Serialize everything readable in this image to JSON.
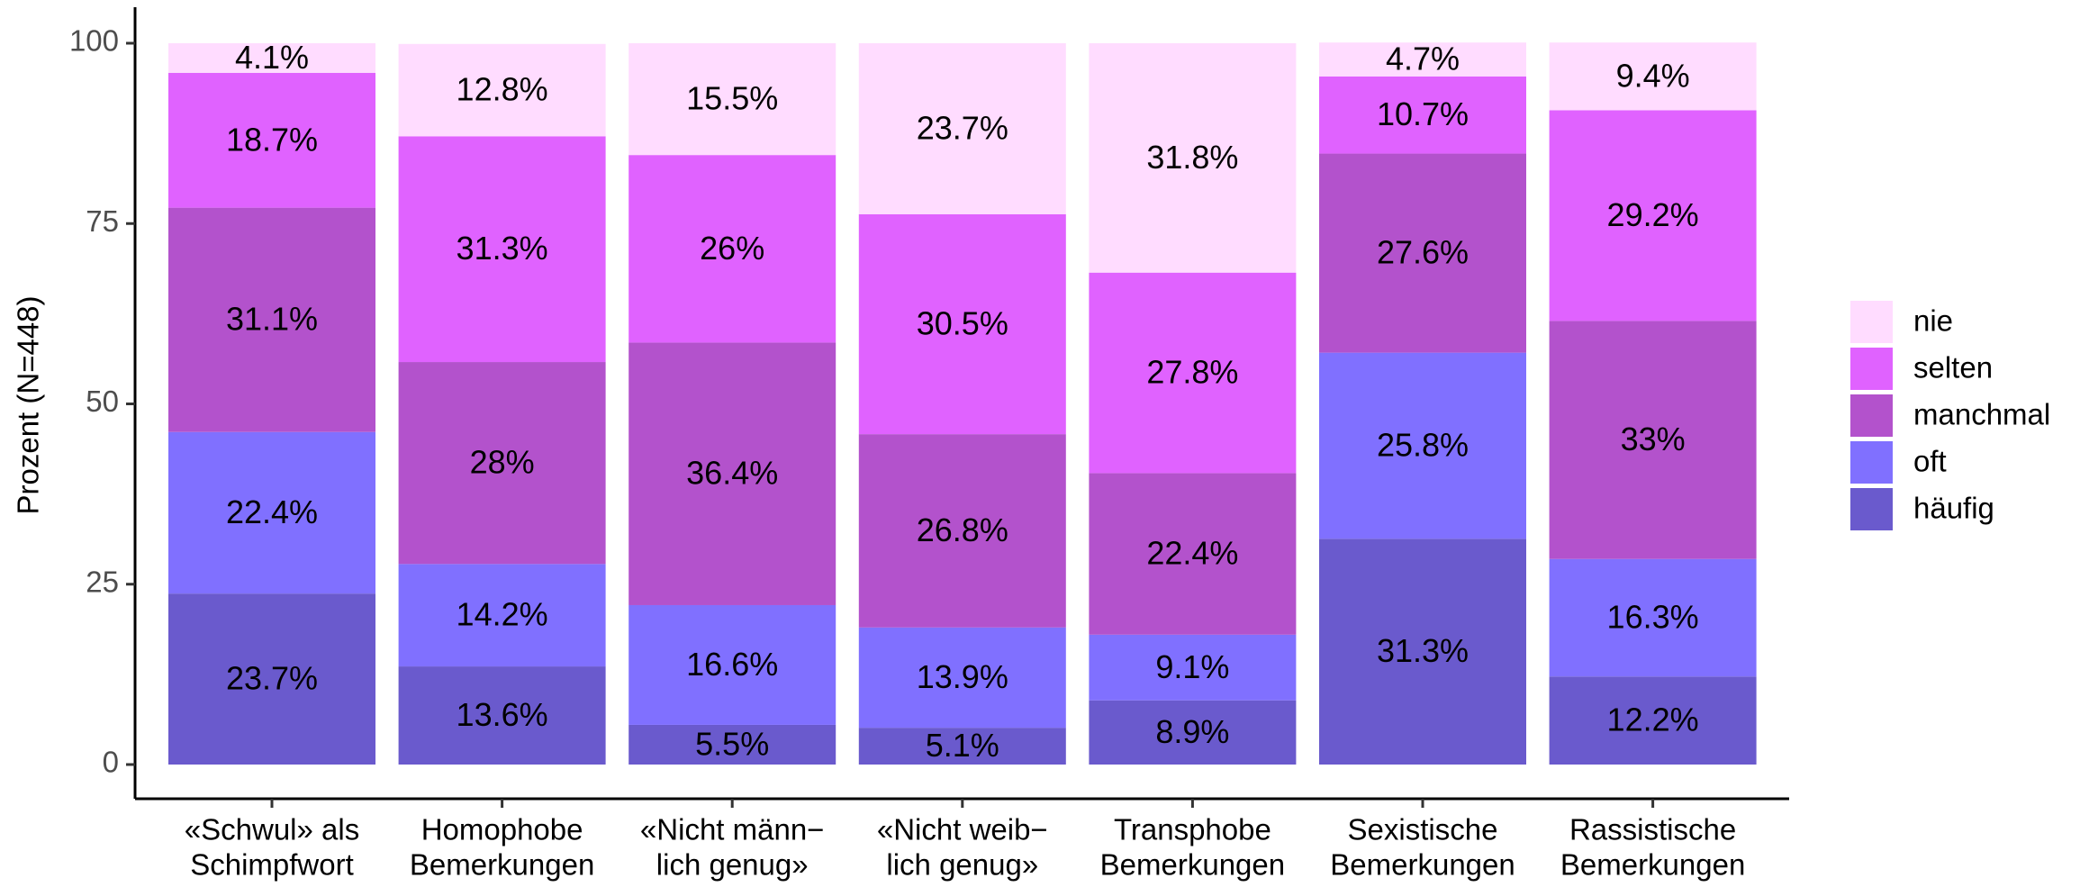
{
  "chart_data": {
    "type": "stacked_bar",
    "y_label": "Prozent (N=448)",
    "categories": [
      [
        "«Schwul» als",
        "Schimpfwort"
      ],
      [
        "Homophobe",
        "Bemerkungen"
      ],
      [
        "«Nicht männ−",
        "lich genug»"
      ],
      [
        "«Nicht weib−",
        "lich genug»"
      ],
      [
        "Transphobe",
        "Bemerkungen"
      ],
      [
        "Sexistische",
        "Bemerkungen"
      ],
      [
        "Rassistische",
        "Bemerkungen"
      ]
    ],
    "series": [
      {
        "name": "häufig",
        "color": "#6a5acd",
        "values": [
          23.7,
          13.6,
          5.5,
          5.1,
          8.9,
          31.3,
          12.2
        ],
        "value_labels": [
          "23.7%",
          "13.6%",
          "5.5%",
          "5.1%",
          "8.9%",
          "31.3%",
          "12.2%"
        ]
      },
      {
        "name": "oft",
        "color": "#8070ff",
        "values": [
          22.4,
          14.2,
          16.6,
          13.9,
          9.1,
          25.8,
          16.3
        ],
        "value_labels": [
          "22.4%",
          "14.2%",
          "16.6%",
          "13.9%",
          "9.1%",
          "25.8%",
          "16.3%"
        ]
      },
      {
        "name": "manchmal",
        "color": "#b352cc",
        "values": [
          31.1,
          28,
          36.4,
          26.8,
          22.4,
          27.6,
          33
        ],
        "value_labels": [
          "31.1%",
          "28%",
          "36.4%",
          "26.8%",
          "22.4%",
          "27.6%",
          "33%"
        ]
      },
      {
        "name": "selten",
        "color": "#e062ff",
        "values": [
          18.7,
          31.3,
          26,
          30.5,
          27.8,
          10.7,
          29.2
        ],
        "value_labels": [
          "18.7%",
          "31.3%",
          "26%",
          "30.5%",
          "27.8%",
          "10.7%",
          "29.2%"
        ]
      },
      {
        "name": "nie",
        "color": "#ffdcff",
        "values": [
          4.1,
          12.8,
          15.5,
          23.7,
          31.8,
          4.7,
          9.4
        ],
        "value_labels": [
          "4.1%",
          "12.8%",
          "15.5%",
          "23.7%",
          "31.8%",
          "4.7%",
          "9.4%"
        ]
      }
    ],
    "ylim": [
      0,
      100
    ],
    "yticks": [
      0,
      25,
      50,
      75,
      100
    ],
    "grid": false,
    "legend": "right"
  }
}
